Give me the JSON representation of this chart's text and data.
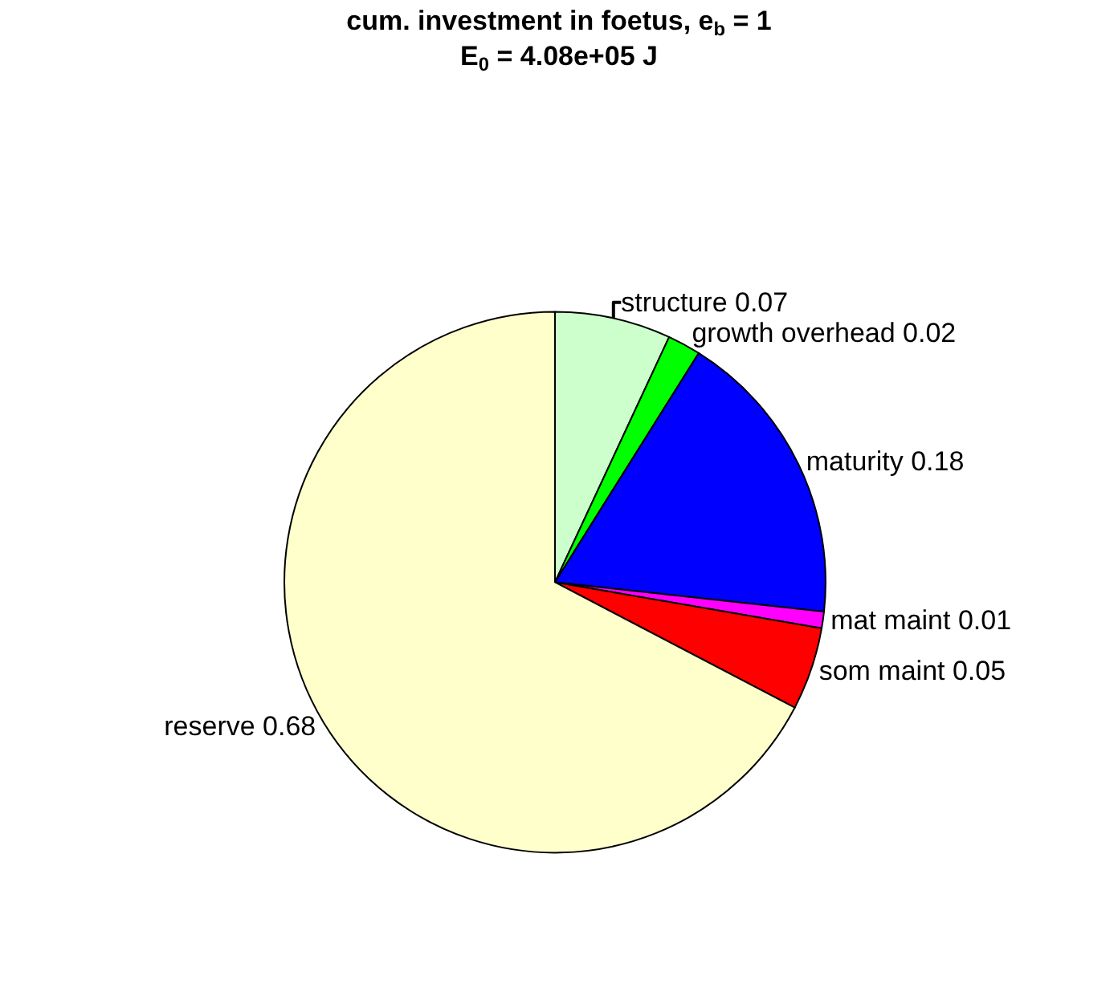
{
  "chart_data": {
    "type": "pie",
    "title": "cum. investment in foetus, e$_{b}$ = 1",
    "subtitle": "E$_{0}$ = 4.08e+05 J",
    "categories": [
      "structure 0.07",
      "growth overhead 0.02",
      "maturity 0.18",
      "mat maint 0.01",
      "som maint 0.05",
      "reserve 0.68"
    ],
    "values": [
      0.07,
      0.02,
      0.18,
      0.01,
      0.05,
      0.68
    ],
    "colors": [
      "#ccffcc",
      "#00ff00",
      "#0000ff",
      "#ff00ff",
      "#ff0000",
      "#ffffcc"
    ],
    "legend": false
  }
}
